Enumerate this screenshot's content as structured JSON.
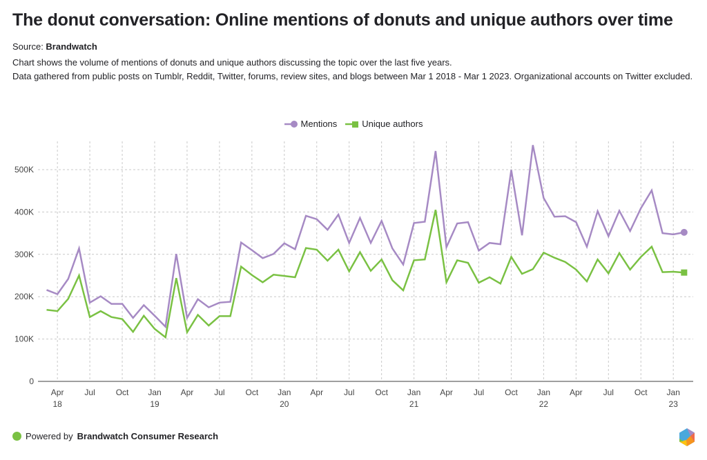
{
  "header": {
    "title": "The donut conversation: Online mentions of donuts and unique authors over time",
    "source_label": "Source: ",
    "source_name": "Brandwatch",
    "description_line1": "Chart shows the volume of mentions of donuts and unique authors discussing the topic over the last five years.",
    "description_line2": "Data gathered from public posts on Tumblr, Reddit, Twitter, forums, review sites, and blogs between Mar 1 2018 - Mar 1 2023. Organizational accounts on Twitter excluded."
  },
  "footer": {
    "powered_by": "Powered by ",
    "brand": "Brandwatch Consumer Research",
    "dot_color": "#7ac143",
    "logo_icon": "hexagon-logo-icon"
  },
  "chart_data": {
    "type": "line",
    "title": "The donut conversation: Online mentions of donuts and unique authors over time",
    "xlabel": "",
    "ylabel": "",
    "ylim": [
      0,
      560000
    ],
    "grid": true,
    "legend_position": "top-center",
    "y_ticks": [
      0,
      100000,
      200000,
      300000,
      400000,
      500000
    ],
    "y_tick_labels": [
      "0",
      "100K",
      "200K",
      "300K",
      "400K",
      "500K"
    ],
    "x_ticks": [
      {
        "month_index": 1,
        "label": "Apr",
        "year": "18"
      },
      {
        "month_index": 4,
        "label": "Jul",
        "year": ""
      },
      {
        "month_index": 7,
        "label": "Oct",
        "year": ""
      },
      {
        "month_index": 10,
        "label": "Jan",
        "year": "19"
      },
      {
        "month_index": 13,
        "label": "Apr",
        "year": ""
      },
      {
        "month_index": 16,
        "label": "Jul",
        "year": ""
      },
      {
        "month_index": 19,
        "label": "Oct",
        "year": ""
      },
      {
        "month_index": 22,
        "label": "Jan",
        "year": "20"
      },
      {
        "month_index": 25,
        "label": "Apr",
        "year": ""
      },
      {
        "month_index": 28,
        "label": "Jul",
        "year": ""
      },
      {
        "month_index": 31,
        "label": "Oct",
        "year": ""
      },
      {
        "month_index": 34,
        "label": "Jan",
        "year": "21"
      },
      {
        "month_index": 37,
        "label": "Apr",
        "year": ""
      },
      {
        "month_index": 40,
        "label": "Jul",
        "year": ""
      },
      {
        "month_index": 43,
        "label": "Oct",
        "year": ""
      },
      {
        "month_index": 46,
        "label": "Jan",
        "year": "22"
      },
      {
        "month_index": 49,
        "label": "Apr",
        "year": ""
      },
      {
        "month_index": 52,
        "label": "Jul",
        "year": ""
      },
      {
        "month_index": 55,
        "label": "Oct",
        "year": ""
      },
      {
        "month_index": 58,
        "label": "Jan",
        "year": "23"
      }
    ],
    "x": [
      "2018-03",
      "2018-04",
      "2018-05",
      "2018-06",
      "2018-07",
      "2018-08",
      "2018-09",
      "2018-10",
      "2018-11",
      "2018-12",
      "2019-01",
      "2019-02",
      "2019-03",
      "2019-04",
      "2019-05",
      "2019-06",
      "2019-07",
      "2019-08",
      "2019-09",
      "2019-10",
      "2019-11",
      "2019-12",
      "2020-01",
      "2020-02",
      "2020-03",
      "2020-04",
      "2020-05",
      "2020-06",
      "2020-07",
      "2020-08",
      "2020-09",
      "2020-10",
      "2020-11",
      "2020-12",
      "2021-01",
      "2021-02",
      "2021-03",
      "2021-04",
      "2021-05",
      "2021-06",
      "2021-07",
      "2021-08",
      "2021-09",
      "2021-10",
      "2021-11",
      "2021-12",
      "2022-01",
      "2022-02",
      "2022-03",
      "2022-04",
      "2022-05",
      "2022-06",
      "2022-07",
      "2022-08",
      "2022-09",
      "2022-10",
      "2022-11",
      "2022-12",
      "2023-01",
      "2023-02"
    ],
    "series": [
      {
        "name": "Mentions",
        "color": "#a68ac4",
        "marker": "circle",
        "values": [
          216000,
          206000,
          242000,
          314000,
          186000,
          201000,
          183000,
          183000,
          150000,
          180000,
          155000,
          129000,
          301000,
          150000,
          194000,
          175000,
          186000,
          188000,
          328000,
          310000,
          291000,
          301000,
          326000,
          312000,
          391000,
          383000,
          358000,
          394000,
          327000,
          386000,
          327000,
          379000,
          314000,
          276000,
          374000,
          377000,
          544000,
          317000,
          373000,
          376000,
          309000,
          327000,
          324000,
          499000,
          345000,
          558000,
          433000,
          389000,
          390000,
          376000,
          318000,
          402000,
          343000,
          403000,
          355000,
          409000,
          451000,
          350000,
          347000,
          352000
        ]
      },
      {
        "name": "Unique authors",
        "color": "#7ac143",
        "marker": "square",
        "values": [
          169000,
          166000,
          195000,
          250000,
          152000,
          166000,
          152000,
          147000,
          117000,
          155000,
          124000,
          104000,
          244000,
          116000,
          157000,
          132000,
          154000,
          154000,
          271000,
          251000,
          234000,
          252000,
          249000,
          246000,
          315000,
          311000,
          285000,
          311000,
          260000,
          305000,
          261000,
          288000,
          239000,
          215000,
          286000,
          288000,
          405000,
          234000,
          286000,
          280000,
          233000,
          246000,
          231000,
          294000,
          254000,
          265000,
          304000,
          292000,
          282000,
          264000,
          236000,
          288000,
          255000,
          303000,
          264000,
          294000,
          318000,
          258000,
          259000,
          257000
        ]
      }
    ]
  }
}
